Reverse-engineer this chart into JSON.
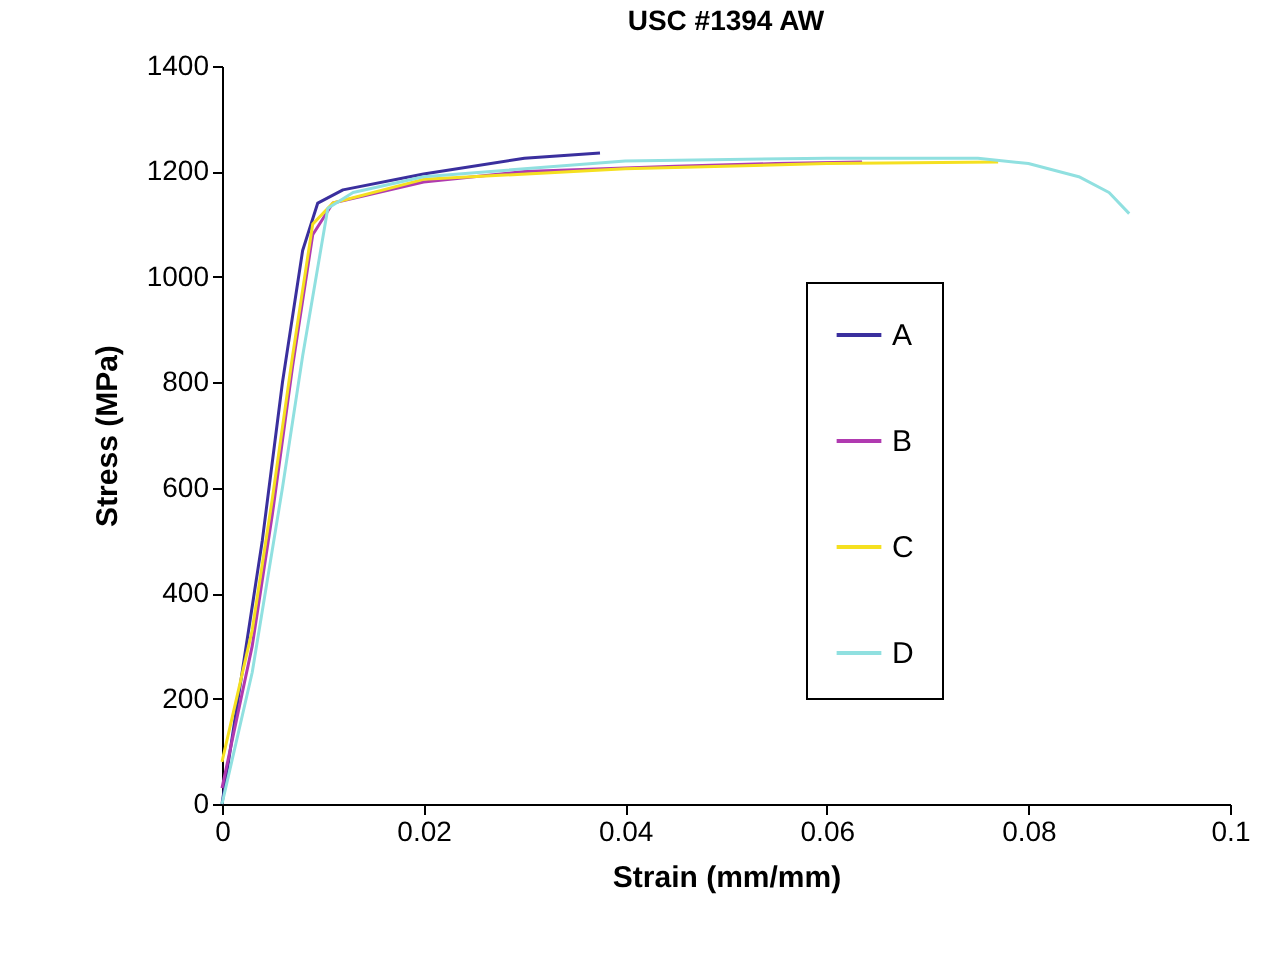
{
  "chart_data": {
    "type": "line",
    "title": "USC #1394 AW",
    "xlabel": "Strain (mm/mm)",
    "ylabel": "Stress (MPa)",
    "xlim": [
      0,
      0.1
    ],
    "xticks": [
      0,
      0.02,
      0.04,
      0.06,
      0.08,
      0.1
    ],
    "ylim": [
      0,
      1400
    ],
    "yticks": [
      0,
      200,
      400,
      600,
      800,
      1000,
      1200,
      1400
    ],
    "grid": false,
    "legend": "right",
    "marker": "none",
    "line_style": "solid",
    "series": [
      {
        "name": "A",
        "color": "#3a2f9e",
        "x": [
          0,
          0.002,
          0.004,
          0.006,
          0.008,
          0.0095,
          0.012,
          0.02,
          0.03,
          0.0375
        ],
        "values": [
          0,
          250,
          500,
          800,
          1050,
          1140,
          1165,
          1195,
          1225,
          1235
        ]
      },
      {
        "name": "B",
        "color": "#b03ab0",
        "x": [
          0,
          0.003,
          0.005,
          0.007,
          0.009,
          0.011,
          0.02,
          0.03,
          0.045,
          0.055,
          0.0635
        ],
        "values": [
          30,
          300,
          550,
          830,
          1080,
          1140,
          1180,
          1200,
          1210,
          1215,
          1218
        ]
      },
      {
        "name": "C",
        "color": "#f5e020",
        "x": [
          0,
          0.003,
          0.005,
          0.007,
          0.009,
          0.011,
          0.02,
          0.04,
          0.06,
          0.077
        ],
        "values": [
          80,
          330,
          580,
          850,
          1100,
          1140,
          1185,
          1205,
          1215,
          1218
        ]
      },
      {
        "name": "D",
        "color": "#90e0e0",
        "x": [
          0,
          0.003,
          0.006,
          0.008,
          0.0105,
          0.013,
          0.02,
          0.04,
          0.06,
          0.075,
          0.08,
          0.085,
          0.088,
          0.09
        ],
        "values": [
          0,
          250,
          600,
          850,
          1130,
          1160,
          1190,
          1220,
          1225,
          1225,
          1215,
          1190,
          1160,
          1120
        ]
      }
    ]
  }
}
